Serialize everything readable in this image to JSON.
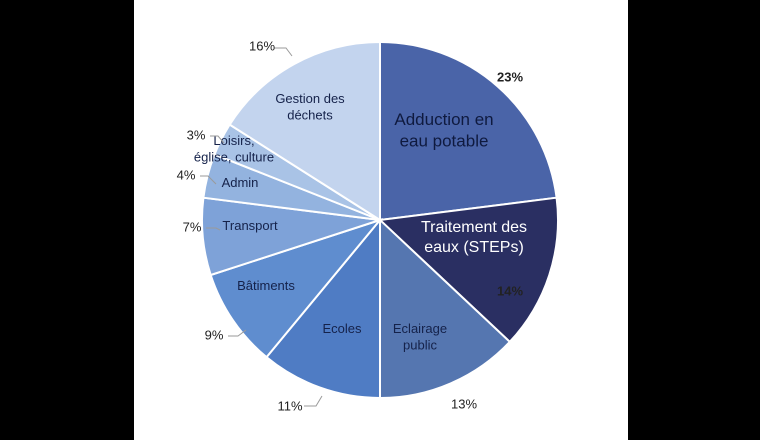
{
  "chart_data": {
    "type": "pie",
    "start_angle_deg": 0,
    "direction": "clockwise",
    "slices": [
      {
        "label": "Adduction en\neau potable",
        "pct_label": "23%",
        "value": 23,
        "color": "#4a64a8",
        "label_color": "#0f1a3f"
      },
      {
        "label": "Traitement des\neaux (STEPs)",
        "pct_label": "14%",
        "value": 14,
        "color": "#2a2f62",
        "label_color": "#ffffff"
      },
      {
        "label": "Eclairage\npublic",
        "pct_label": "13%",
        "value": 13,
        "color": "#5576b0",
        "label_color": "#15224a"
      },
      {
        "label": "Ecoles",
        "pct_label": "11%",
        "value": 11,
        "color": "#4f7cc4",
        "label_color": "#15224a"
      },
      {
        "label": "Bâtiments",
        "pct_label": "9%",
        "value": 9,
        "color": "#5f8dcf",
        "label_color": "#15224a"
      },
      {
        "label": "Transport",
        "pct_label": "7%",
        "value": 7,
        "color": "#7ea2d8",
        "label_color": "#15224a"
      },
      {
        "label": "Admin",
        "pct_label": "4%",
        "value": 4,
        "color": "#93b3df",
        "label_color": "#15224a"
      },
      {
        "label": "Loisirs,\néglise, culture",
        "pct_label": "3%",
        "value": 3,
        "color": "#a9c3e6",
        "label_color": "#15224a"
      },
      {
        "label": "Gestion des\ndéchets",
        "pct_label": "16%",
        "value": 16,
        "color": "#c3d4ee",
        "label_color": "#15224a"
      }
    ]
  }
}
